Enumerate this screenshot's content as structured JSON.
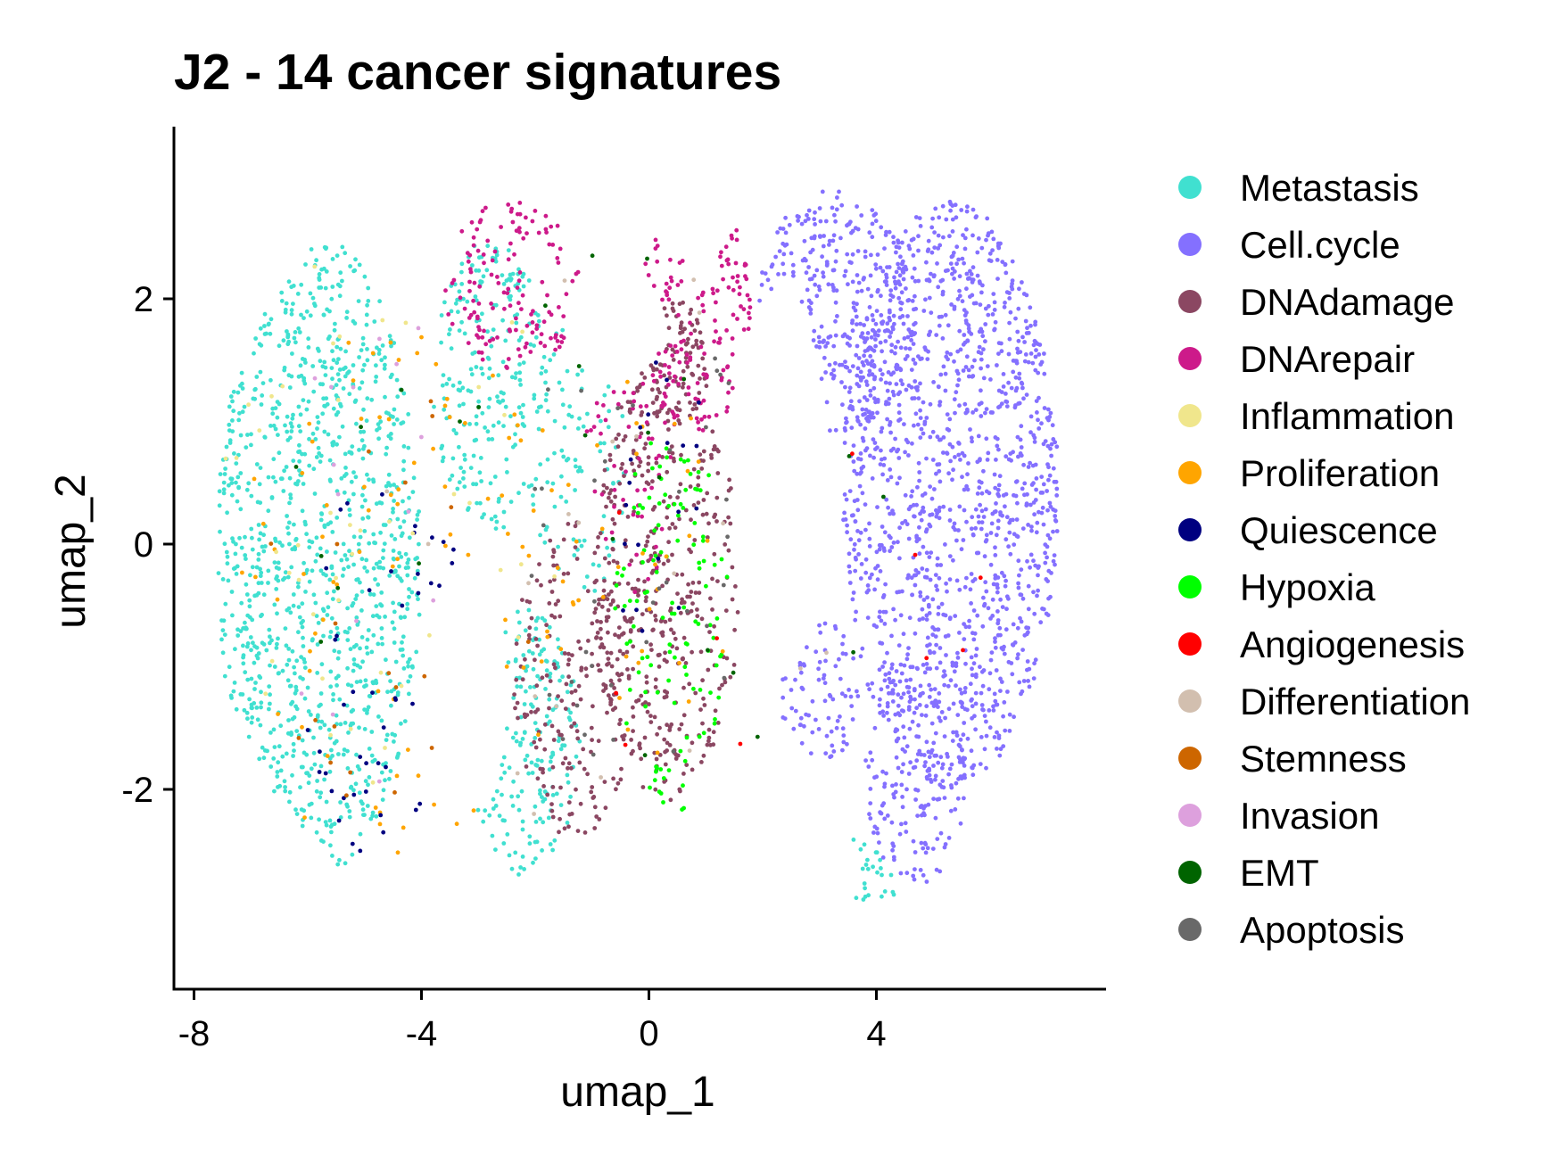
{
  "chart_data": {
    "type": "scatter",
    "title": "J2 - 14 cancer signatures",
    "xlabel": "umap_1",
    "ylabel": "umap_2",
    "xlim": [
      -8.4,
      8.0
    ],
    "ylim": [
      -3.6,
      3.4
    ],
    "x_ticks": [
      -8,
      -4,
      0,
      4
    ],
    "y_ticks": [
      2,
      0,
      -2
    ],
    "x_tick_labels": [
      "-8",
      "-4",
      "0",
      "4"
    ],
    "y_tick_labels": [
      "2",
      "0",
      "-2"
    ],
    "grid": false,
    "legend_position": "right",
    "series": [
      {
        "name": "Metastasis",
        "color": "#40E0D0"
      },
      {
        "name": "Cell.cycle",
        "color": "#8470FF"
      },
      {
        "name": "DNAdamage",
        "color": "#8B4762"
      },
      {
        "name": "DNArepair",
        "color": "#CD1A8A"
      },
      {
        "name": "Inflammation",
        "color": "#F0E68C"
      },
      {
        "name": "Proliferation",
        "color": "#FFA500"
      },
      {
        "name": "Quiescence",
        "color": "#000080"
      },
      {
        "name": "Hypoxia",
        "color": "#00FF00"
      },
      {
        "name": "Angiogenesis",
        "color": "#FF0000"
      },
      {
        "name": "Differentiation",
        "color": "#D2BFAF"
      },
      {
        "name": "Stemness",
        "color": "#CD6600"
      },
      {
        "name": "Invasion",
        "color": "#DDA0DD"
      },
      {
        "name": "EMT",
        "color": "#006400"
      },
      {
        "name": "Apoptosis",
        "color": "#696969"
      }
    ],
    "clusters": [
      {
        "series": "Metastasis",
        "count": 1100,
        "cx": -5.8,
        "cy": -0.1,
        "rx": 1.8,
        "ry": 2.6
      },
      {
        "series": "Metastasis",
        "count": 220,
        "cx": -2.8,
        "cy": 1.3,
        "rx": 1.0,
        "ry": 1.2
      },
      {
        "series": "Metastasis",
        "count": 180,
        "cx": -2.2,
        "cy": -1.6,
        "rx": 1.0,
        "ry": 1.1
      },
      {
        "series": "Metastasis",
        "count": 90,
        "cx": -1.3,
        "cy": 0.6,
        "rx": 0.9,
        "ry": 1.2
      },
      {
        "series": "Metastasis",
        "count": 25,
        "cx": 3.9,
        "cy": -2.8,
        "rx": 0.5,
        "ry": 0.5
      },
      {
        "series": "Cell.cycle",
        "count": 1350,
        "cx": 5.3,
        "cy": 0.4,
        "rx": 1.9,
        "ry": 2.4
      },
      {
        "series": "Cell.cycle",
        "count": 320,
        "cx": 3.3,
        "cy": 1.9,
        "rx": 1.4,
        "ry": 1.0
      },
      {
        "series": "Cell.cycle",
        "count": 80,
        "cx": 3.0,
        "cy": -1.2,
        "rx": 0.7,
        "ry": 0.6
      },
      {
        "series": "Cell.cycle",
        "count": 160,
        "cx": 4.7,
        "cy": -1.9,
        "rx": 0.9,
        "ry": 0.9
      },
      {
        "series": "DNAdamage",
        "count": 420,
        "cx": 0.3,
        "cy": -0.3,
        "rx": 1.3,
        "ry": 1.8
      },
      {
        "series": "DNAdamage",
        "count": 200,
        "cx": -1.3,
        "cy": -1.1,
        "rx": 1.1,
        "ry": 1.3
      },
      {
        "series": "DNAdamage",
        "count": 80,
        "cx": 0.4,
        "cy": 1.5,
        "rx": 0.7,
        "ry": 0.5
      },
      {
        "series": "DNArepair",
        "count": 140,
        "cx": -2.4,
        "cy": 2.1,
        "rx": 1.2,
        "ry": 0.7
      },
      {
        "series": "DNArepair",
        "count": 140,
        "cx": 0.8,
        "cy": 1.9,
        "rx": 1.0,
        "ry": 1.0
      },
      {
        "series": "DNArepair",
        "count": 60,
        "cx": -0.3,
        "cy": 0.8,
        "rx": 0.8,
        "ry": 1.2
      },
      {
        "series": "Hypoxia",
        "count": 120,
        "cx": 0.4,
        "cy": -0.6,
        "rx": 1.0,
        "ry": 1.6
      },
      {
        "series": "Proliferation",
        "count": 90,
        "cx": -4.3,
        "cy": -0.4,
        "rx": 3.2,
        "ry": 2.2
      },
      {
        "series": "Proliferation",
        "count": 30,
        "cx": 0.0,
        "cy": 0.0,
        "rx": 1.5,
        "ry": 1.8
      },
      {
        "series": "Quiescence",
        "count": 45,
        "cx": -4.6,
        "cy": -1.0,
        "rx": 1.5,
        "ry": 1.6
      },
      {
        "series": "Quiescence",
        "count": 20,
        "cx": 0.2,
        "cy": 0.3,
        "rx": 1.0,
        "ry": 1.4
      },
      {
        "series": "Inflammation",
        "count": 45,
        "cx": -4.5,
        "cy": 0.3,
        "rx": 3.0,
        "ry": 2.3
      },
      {
        "series": "Apoptosis",
        "count": 40,
        "cx": -0.2,
        "cy": 0.0,
        "rx": 2.0,
        "ry": 2.2
      },
      {
        "series": "EMT",
        "count": 25,
        "cx": -1.0,
        "cy": 0.0,
        "rx": 5.5,
        "ry": 2.5
      },
      {
        "series": "Differentiation",
        "count": 20,
        "cx": -1.0,
        "cy": 0.0,
        "rx": 4.5,
        "ry": 2.4
      },
      {
        "series": "Stemness",
        "count": 20,
        "cx": -4.5,
        "cy": -0.5,
        "rx": 2.5,
        "ry": 2.0
      },
      {
        "series": "Invasion",
        "count": 15,
        "cx": -5.0,
        "cy": 0.0,
        "rx": 2.0,
        "ry": 2.0
      },
      {
        "series": "Angiogenesis",
        "count": 10,
        "cx": 1.0,
        "cy": -0.5,
        "rx": 5.0,
        "ry": 1.5
      }
    ]
  }
}
